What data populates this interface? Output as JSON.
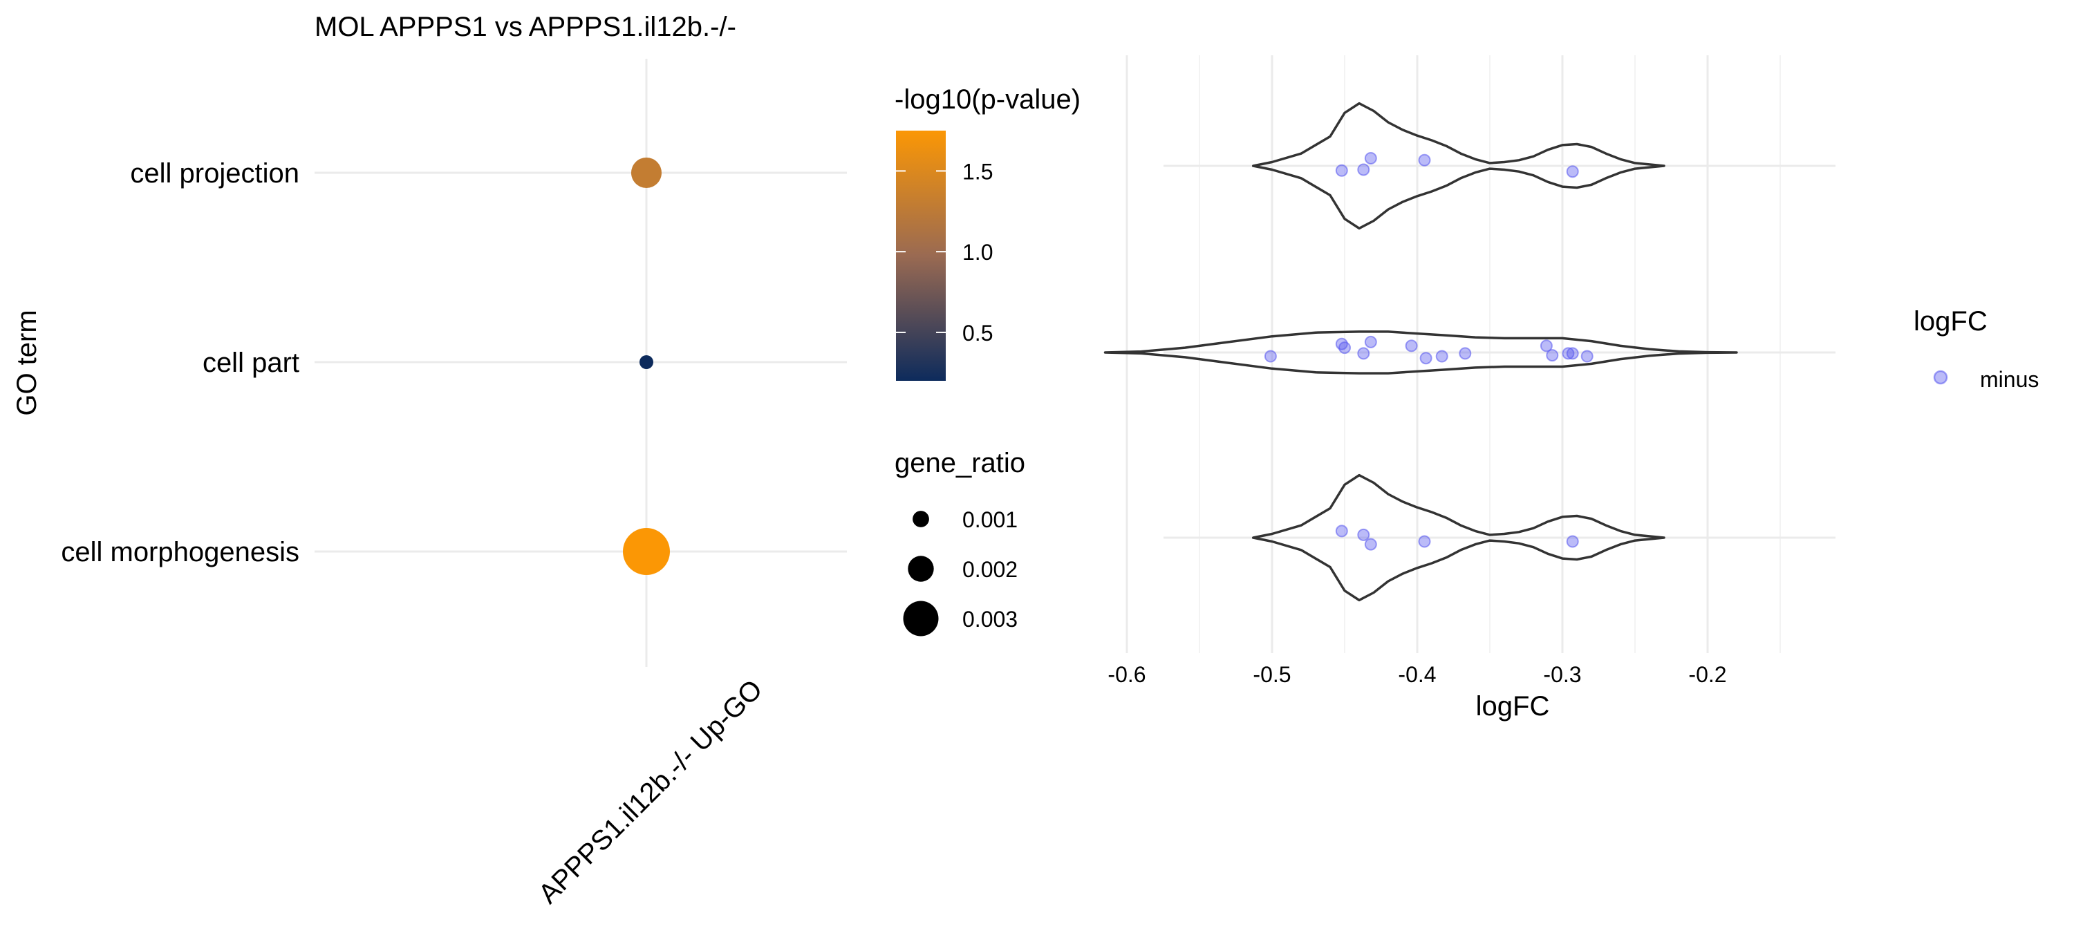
{
  "chart_data": [
    {
      "type": "scatter",
      "subtype": "dot",
      "title": "MOL APPPS1 vs APPPS1.il12b.-/-",
      "ylabel": "GO term",
      "xlabel": "",
      "categories_x": [
        "APPPS1.il12b.-/- Up-GO"
      ],
      "categories_y": [
        "cell projection",
        "cell part",
        "cell morphogenesis"
      ],
      "points": [
        {
          "term": "cell projection",
          "x": "APPPS1.il12b.-/- Up-GO",
          "neglog10_p": 1.3,
          "gene_ratio": 0.002
        },
        {
          "term": "cell part",
          "x": "APPPS1.il12b.-/- Up-GO",
          "neglog10_p": 0.2,
          "gene_ratio": 0.0005
        },
        {
          "term": "cell morphogenesis",
          "x": "APPPS1.il12b.-/- Up-GO",
          "neglog10_p": 1.75,
          "gene_ratio": 0.0035
        }
      ],
      "color_legend": {
        "title": "-log10(p-value)",
        "min": 0.2,
        "max": 1.75,
        "ticks": [
          0.5,
          1.0,
          1.5
        ],
        "tick_labels": [
          "0.5",
          "1.0",
          "1.5"
        ],
        "low_color": "#0d2b5c",
        "mid_color": "#9a6a52",
        "high_color": "#fb9705"
      },
      "size_legend": {
        "title": "gene_ratio",
        "values": [
          0.001,
          0.002,
          0.003
        ],
        "labels": [
          "0.001",
          "0.002",
          "0.003"
        ]
      },
      "grid": true
    },
    {
      "type": "violin",
      "xlabel": "logFC",
      "ylabel": "",
      "xlim": [
        -0.63,
        -0.15
      ],
      "xticks": [
        -0.6,
        -0.5,
        -0.4,
        -0.3,
        -0.2
      ],
      "xtick_labels": [
        "-0.6",
        "-0.5",
        "-0.4",
        "-0.3",
        "-0.2"
      ],
      "grid": true,
      "point_color": "#5555ee",
      "violins": [
        {
          "term": "cell projection",
          "points": [
            [
              -0.452,
              -0.05
            ],
            [
              -0.437,
              -0.04
            ],
            [
              -0.432,
              0.08
            ],
            [
              -0.395,
              0.06
            ],
            [
              -0.293,
              -0.06
            ]
          ],
          "profile": [
            [
              -0.513,
              0.0
            ],
            [
              -0.5,
              0.04
            ],
            [
              -0.48,
              0.13
            ],
            [
              -0.46,
              0.31
            ],
            [
              -0.45,
              0.56
            ],
            [
              -0.44,
              0.66
            ],
            [
              -0.43,
              0.58
            ],
            [
              -0.42,
              0.46
            ],
            [
              -0.41,
              0.38
            ],
            [
              -0.4,
              0.32
            ],
            [
              -0.39,
              0.27
            ],
            [
              -0.38,
              0.21
            ],
            [
              -0.37,
              0.13
            ],
            [
              -0.36,
              0.07
            ],
            [
              -0.35,
              0.03
            ],
            [
              -0.34,
              0.04
            ],
            [
              -0.33,
              0.06
            ],
            [
              -0.32,
              0.1
            ],
            [
              -0.31,
              0.17
            ],
            [
              -0.3,
              0.22
            ],
            [
              -0.29,
              0.23
            ],
            [
              -0.28,
              0.2
            ],
            [
              -0.27,
              0.13
            ],
            [
              -0.26,
              0.07
            ],
            [
              -0.25,
              0.03
            ],
            [
              -0.23,
              0.0
            ]
          ]
        },
        {
          "term": "cell part",
          "points": [
            [
              -0.501,
              -0.04
            ],
            [
              -0.452,
              0.09
            ],
            [
              -0.45,
              0.05
            ],
            [
              -0.437,
              -0.01
            ],
            [
              -0.432,
              0.11
            ],
            [
              -0.404,
              0.07
            ],
            [
              -0.394,
              -0.06
            ],
            [
              -0.383,
              -0.04
            ],
            [
              -0.367,
              -0.01
            ],
            [
              -0.311,
              0.07
            ],
            [
              -0.307,
              -0.03
            ],
            [
              -0.296,
              -0.01
            ],
            [
              -0.293,
              -0.01
            ],
            [
              -0.283,
              -0.04
            ]
          ],
          "profile": [
            [
              -0.615,
              0.0
            ],
            [
              -0.59,
              0.01
            ],
            [
              -0.56,
              0.05
            ],
            [
              -0.53,
              0.11
            ],
            [
              -0.5,
              0.17
            ],
            [
              -0.47,
              0.21
            ],
            [
              -0.44,
              0.22
            ],
            [
              -0.42,
              0.22
            ],
            [
              -0.4,
              0.2
            ],
            [
              -0.38,
              0.18
            ],
            [
              -0.36,
              0.16
            ],
            [
              -0.34,
              0.15
            ],
            [
              -0.32,
              0.15
            ],
            [
              -0.3,
              0.15
            ],
            [
              -0.28,
              0.12
            ],
            [
              -0.26,
              0.07
            ],
            [
              -0.24,
              0.035
            ],
            [
              -0.22,
              0.012
            ],
            [
              -0.2,
              0.003
            ],
            [
              -0.18,
              0.0
            ]
          ]
        },
        {
          "term": "cell morphogenesis",
          "points": [
            [
              -0.452,
              0.07
            ],
            [
              -0.437,
              0.03
            ],
            [
              -0.432,
              -0.07
            ],
            [
              -0.395,
              -0.04
            ],
            [
              -0.293,
              -0.04
            ]
          ],
          "profile": [
            [
              -0.513,
              0.0
            ],
            [
              -0.5,
              0.04
            ],
            [
              -0.48,
              0.13
            ],
            [
              -0.46,
              0.31
            ],
            [
              -0.45,
              0.56
            ],
            [
              -0.44,
              0.66
            ],
            [
              -0.43,
              0.58
            ],
            [
              -0.42,
              0.46
            ],
            [
              -0.41,
              0.38
            ],
            [
              -0.4,
              0.32
            ],
            [
              -0.39,
              0.27
            ],
            [
              -0.38,
              0.21
            ],
            [
              -0.37,
              0.13
            ],
            [
              -0.36,
              0.07
            ],
            [
              -0.35,
              0.03
            ],
            [
              -0.34,
              0.04
            ],
            [
              -0.33,
              0.06
            ],
            [
              -0.32,
              0.1
            ],
            [
              -0.31,
              0.17
            ],
            [
              -0.3,
              0.22
            ],
            [
              -0.29,
              0.23
            ],
            [
              -0.28,
              0.2
            ],
            [
              -0.27,
              0.13
            ],
            [
              -0.26,
              0.07
            ],
            [
              -0.25,
              0.03
            ],
            [
              -0.23,
              0.0
            ]
          ]
        }
      ],
      "legend": {
        "title": "logFC",
        "entries": [
          "minus"
        ]
      }
    }
  ]
}
